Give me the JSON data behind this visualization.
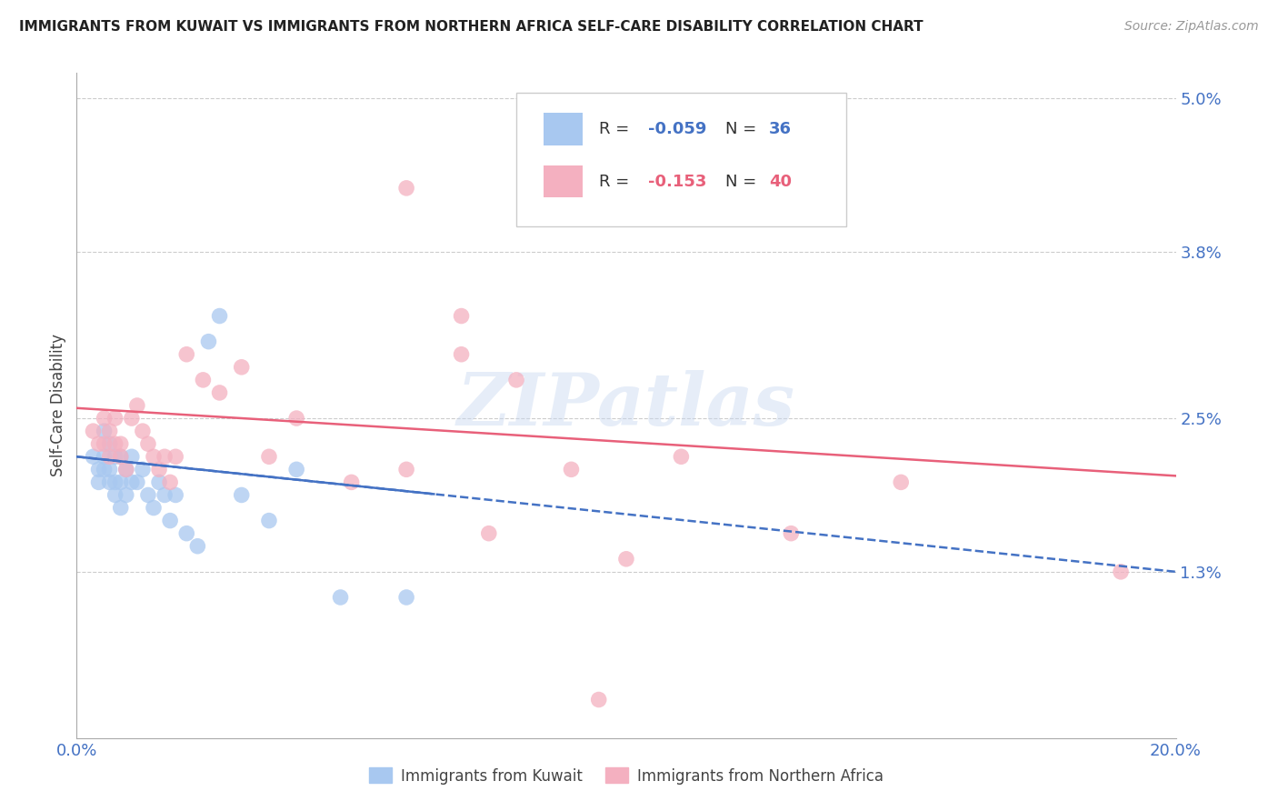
{
  "title": "IMMIGRANTS FROM KUWAIT VS IMMIGRANTS FROM NORTHERN AFRICA SELF-CARE DISABILITY CORRELATION CHART",
  "source": "Source: ZipAtlas.com",
  "ylabel": "Self-Care Disability",
  "xlim": [
    0.0,
    0.2
  ],
  "ylim": [
    0.0,
    0.052
  ],
  "ytick_vals": [
    0.013,
    0.025,
    0.038,
    0.05
  ],
  "ytick_labels": [
    "1.3%",
    "2.5%",
    "3.8%",
    "5.0%"
  ],
  "xtick_vals": [
    0.0,
    0.2
  ],
  "xtick_labels": [
    "0.0%",
    "20.0%"
  ],
  "color_kuwait": "#a8c8f0",
  "color_n_africa": "#f4b0c0",
  "color_kuwait_line": "#4472c4",
  "color_n_africa_line": "#e8607a",
  "color_axis_labels": "#4472c4",
  "color_grid": "#cccccc",
  "watermark": "ZIPatlas",
  "legend_r1": "R = -0.059",
  "legend_n1": "N = 36",
  "legend_r2": "R = -0.153",
  "legend_n2": "N = 40",
  "kuwait_line_start": 0.022,
  "kuwait_line_end": 0.013,
  "n_africa_line_start": 0.0258,
  "n_africa_line_end": 0.0205,
  "kuwait_x": [
    0.003,
    0.004,
    0.004,
    0.005,
    0.005,
    0.005,
    0.006,
    0.006,
    0.006,
    0.007,
    0.007,
    0.007,
    0.008,
    0.008,
    0.008,
    0.009,
    0.009,
    0.01,
    0.01,
    0.011,
    0.012,
    0.013,
    0.014,
    0.015,
    0.016,
    0.017,
    0.018,
    0.02,
    0.022,
    0.024,
    0.026,
    0.03,
    0.035,
    0.04,
    0.048,
    0.06
  ],
  "kuwait_y": [
    0.022,
    0.021,
    0.02,
    0.024,
    0.022,
    0.021,
    0.023,
    0.021,
    0.02,
    0.022,
    0.02,
    0.019,
    0.022,
    0.02,
    0.018,
    0.021,
    0.019,
    0.022,
    0.02,
    0.02,
    0.021,
    0.019,
    0.018,
    0.02,
    0.019,
    0.017,
    0.019,
    0.016,
    0.015,
    0.031,
    0.033,
    0.019,
    0.017,
    0.021,
    0.011,
    0.011
  ],
  "n_africa_x": [
    0.003,
    0.004,
    0.005,
    0.005,
    0.006,
    0.006,
    0.007,
    0.007,
    0.008,
    0.008,
    0.009,
    0.01,
    0.011,
    0.012,
    0.013,
    0.014,
    0.015,
    0.016,
    0.017,
    0.018,
    0.02,
    0.023,
    0.026,
    0.03,
    0.035,
    0.04,
    0.05,
    0.06,
    0.07,
    0.075,
    0.08,
    0.09,
    0.1,
    0.11,
    0.13,
    0.15,
    0.06,
    0.07,
    0.19,
    0.095
  ],
  "n_africa_y": [
    0.024,
    0.023,
    0.025,
    0.023,
    0.024,
    0.022,
    0.025,
    0.023,
    0.023,
    0.022,
    0.021,
    0.025,
    0.026,
    0.024,
    0.023,
    0.022,
    0.021,
    0.022,
    0.02,
    0.022,
    0.03,
    0.028,
    0.027,
    0.029,
    0.022,
    0.025,
    0.02,
    0.021,
    0.03,
    0.016,
    0.028,
    0.021,
    0.014,
    0.022,
    0.016,
    0.02,
    0.043,
    0.033,
    0.013,
    0.003
  ]
}
